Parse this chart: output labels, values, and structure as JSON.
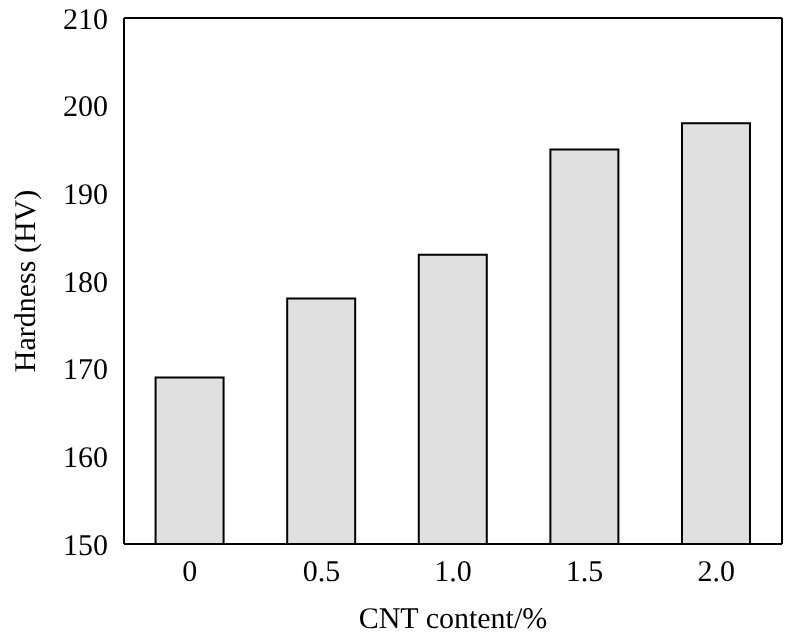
{
  "chart_data": {
    "type": "bar",
    "xlabel": "CNT content/%",
    "ylabel": "Hardness (HV)",
    "categories": [
      "0",
      "0.5",
      "1.0",
      "1.5",
      "2.0"
    ],
    "values": [
      169,
      178,
      183,
      195,
      198
    ],
    "color": "#e0e0e0",
    "ylim": [
      150,
      210
    ],
    "yticks": [
      150,
      160,
      170,
      180,
      190,
      200,
      210
    ],
    "grid": false
  }
}
